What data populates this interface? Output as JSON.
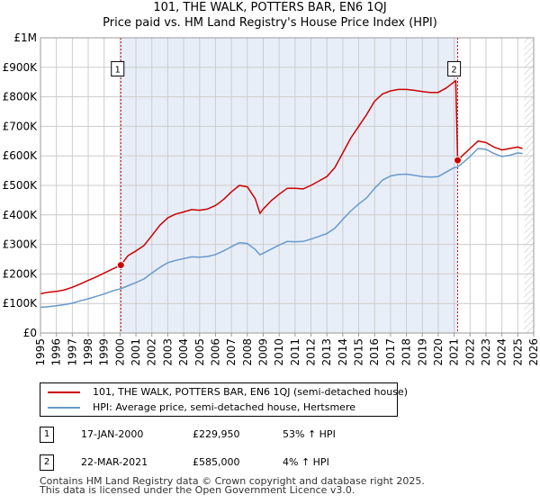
{
  "title_line1": "101, THE WALK, POTTERS BAR, EN6 1QJ",
  "title_line2": "Price paid vs. HM Land Registry's House Price Index (HPI)",
  "colors": {
    "price": "#cc0000",
    "hpi": "#6699cc",
    "shade": "#e8eef8",
    "grid": "#cccccc",
    "marker": "#cc0000"
  },
  "chart_data": {
    "type": "line",
    "xlabel": "",
    "ylabel": "",
    "xlim": [
      1995,
      2026
    ],
    "ylim": [
      0,
      1000000
    ],
    "x_ticks": [
      "1995",
      "1996",
      "1997",
      "1998",
      "1999",
      "2000",
      "2001",
      "2002",
      "2003",
      "2004",
      "2005",
      "2006",
      "2007",
      "2008",
      "2009",
      "2010",
      "2011",
      "2012",
      "2013",
      "2014",
      "2015",
      "2016",
      "2017",
      "2018",
      "2019",
      "2020",
      "2021",
      "2022",
      "2023",
      "2024",
      "2025",
      "2026"
    ],
    "y_ticks": [
      {
        "value": 0,
        "label": "£0"
      },
      {
        "value": 100000,
        "label": "£100K"
      },
      {
        "value": 200000,
        "label": "£200K"
      },
      {
        "value": 300000,
        "label": "£300K"
      },
      {
        "value": 400000,
        "label": "£400K"
      },
      {
        "value": 500000,
        "label": "£500K"
      },
      {
        "value": 600000,
        "label": "£600K"
      },
      {
        "value": 700000,
        "label": "£700K"
      },
      {
        "value": 800000,
        "label": "£800K"
      },
      {
        "value": 900000,
        "label": "£900K"
      },
      {
        "value": 1000000,
        "label": "£1M"
      }
    ],
    "shaded_span": [
      2000.05,
      2021.22
    ],
    "hatched_from": 2025.4,
    "series": [
      {
        "name": "101, THE WALK, POTTERS BAR, EN6 1QJ (semi-detached house)",
        "color": "#cc0000",
        "points": [
          [
            1995,
            133000
          ],
          [
            1995.5,
            138000
          ],
          [
            1996,
            141000
          ],
          [
            1996.5,
            146000
          ],
          [
            1997,
            155000
          ],
          [
            1997.5,
            166000
          ],
          [
            1998,
            178000
          ],
          [
            1998.5,
            190000
          ],
          [
            1999,
            203000
          ],
          [
            1999.5,
            216000
          ],
          [
            2000.05,
            229950
          ],
          [
            2000.5,
            262000
          ],
          [
            2001,
            278000
          ],
          [
            2001.5,
            296000
          ],
          [
            2002,
            330000
          ],
          [
            2002.5,
            365000
          ],
          [
            2003,
            390000
          ],
          [
            2003.5,
            403000
          ],
          [
            2004,
            410000
          ],
          [
            2004.5,
            418000
          ],
          [
            2005,
            416000
          ],
          [
            2005.5,
            420000
          ],
          [
            2006,
            432000
          ],
          [
            2006.5,
            452000
          ],
          [
            2007,
            478000
          ],
          [
            2007.5,
            500000
          ],
          [
            2008,
            495000
          ],
          [
            2008.5,
            455000
          ],
          [
            2008.8,
            405000
          ],
          [
            2009,
            420000
          ],
          [
            2009.5,
            448000
          ],
          [
            2010,
            470000
          ],
          [
            2010.5,
            490000
          ],
          [
            2011,
            490000
          ],
          [
            2011.5,
            488000
          ],
          [
            2012,
            500000
          ],
          [
            2012.5,
            515000
          ],
          [
            2013,
            530000
          ],
          [
            2013.5,
            560000
          ],
          [
            2014,
            610000
          ],
          [
            2014.5,
            660000
          ],
          [
            2015,
            700000
          ],
          [
            2015.5,
            740000
          ],
          [
            2016,
            785000
          ],
          [
            2016.5,
            810000
          ],
          [
            2017,
            820000
          ],
          [
            2017.5,
            825000
          ],
          [
            2018,
            825000
          ],
          [
            2018.5,
            822000
          ],
          [
            2019,
            818000
          ],
          [
            2019.5,
            815000
          ],
          [
            2020,
            815000
          ],
          [
            2020.5,
            830000
          ],
          [
            2021.1,
            855000
          ],
          [
            2021.22,
            585000
          ],
          [
            2021.5,
            600000
          ],
          [
            2022,
            625000
          ],
          [
            2022.5,
            650000
          ],
          [
            2023,
            645000
          ],
          [
            2023.5,
            630000
          ],
          [
            2024,
            620000
          ],
          [
            2024.5,
            625000
          ],
          [
            2025,
            630000
          ],
          [
            2025.3,
            625000
          ]
        ]
      },
      {
        "name": "HPI: Average price, semi-detached house, Hertsmere",
        "color": "#6699cc",
        "points": [
          [
            1995,
            87000
          ],
          [
            1995.5,
            89000
          ],
          [
            1996,
            92000
          ],
          [
            1996.5,
            96000
          ],
          [
            1997,
            101000
          ],
          [
            1997.5,
            109000
          ],
          [
            1998,
            116000
          ],
          [
            1998.5,
            124000
          ],
          [
            1999,
            132000
          ],
          [
            1999.5,
            142000
          ],
          [
            2000.05,
            150000
          ],
          [
            2000.5,
            160000
          ],
          [
            2001,
            171000
          ],
          [
            2001.5,
            183000
          ],
          [
            2002,
            203000
          ],
          [
            2002.5,
            222000
          ],
          [
            2003,
            238000
          ],
          [
            2003.5,
            246000
          ],
          [
            2004,
            252000
          ],
          [
            2004.5,
            258000
          ],
          [
            2005,
            257000
          ],
          [
            2005.5,
            259000
          ],
          [
            2006,
            266000
          ],
          [
            2006.5,
            278000
          ],
          [
            2007,
            292000
          ],
          [
            2007.5,
            306000
          ],
          [
            2008,
            303000
          ],
          [
            2008.5,
            283000
          ],
          [
            2008.8,
            265000
          ],
          [
            2009,
            270000
          ],
          [
            2009.5,
            284000
          ],
          [
            2010,
            298000
          ],
          [
            2010.5,
            310000
          ],
          [
            2011,
            309000
          ],
          [
            2011.5,
            310000
          ],
          [
            2012,
            318000
          ],
          [
            2012.5,
            327000
          ],
          [
            2013,
            337000
          ],
          [
            2013.5,
            355000
          ],
          [
            2014,
            385000
          ],
          [
            2014.5,
            413000
          ],
          [
            2015,
            437000
          ],
          [
            2015.5,
            458000
          ],
          [
            2016,
            490000
          ],
          [
            2016.5,
            518000
          ],
          [
            2017,
            532000
          ],
          [
            2017.5,
            537000
          ],
          [
            2018,
            538000
          ],
          [
            2018.5,
            534000
          ],
          [
            2019,
            530000
          ],
          [
            2019.5,
            528000
          ],
          [
            2020,
            530000
          ],
          [
            2020.5,
            545000
          ],
          [
            2021,
            560000
          ],
          [
            2021.22,
            562000
          ],
          [
            2021.5,
            575000
          ],
          [
            2022,
            598000
          ],
          [
            2022.5,
            625000
          ],
          [
            2023,
            622000
          ],
          [
            2023.5,
            608000
          ],
          [
            2024,
            598000
          ],
          [
            2024.5,
            602000
          ],
          [
            2025,
            610000
          ],
          [
            2025.3,
            608000
          ]
        ]
      }
    ],
    "sale_markers": [
      {
        "label": "1",
        "x": 2000.05,
        "y": 229950
      },
      {
        "label": "2",
        "x": 2021.22,
        "y": 585000
      }
    ],
    "marker_labels": [
      {
        "label": "1",
        "x": 1999.85,
        "y": 895000
      },
      {
        "label": "2",
        "x": 2021.0,
        "y": 895000
      }
    ]
  },
  "legend": {
    "price_label": "101, THE WALK, POTTERS BAR, EN6 1QJ (semi-detached house)",
    "hpi_label": "HPI: Average price, semi-detached house, Hertsmere"
  },
  "sales": [
    {
      "num": "1",
      "date": "17-JAN-2000",
      "price": "£229,950",
      "hpi": "53% ↑ HPI"
    },
    {
      "num": "2",
      "date": "22-MAR-2021",
      "price": "£585,000",
      "hpi": "4% ↑ HPI"
    }
  ],
  "footer_line1": "Contains HM Land Registry data © Crown copyright and database right 2025.",
  "footer_line2": "This data is licensed under the Open Government Licence v3.0."
}
